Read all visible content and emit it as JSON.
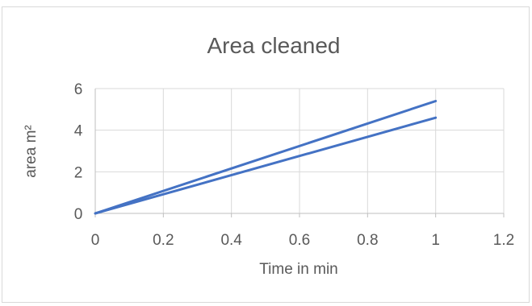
{
  "chart_data": {
    "type": "line",
    "title": "Area cleaned",
    "xlabel": "Time in min",
    "ylabel": "area m²",
    "xlim": [
      0,
      1.2
    ],
    "ylim": [
      0,
      6
    ],
    "x_ticks": [
      "0",
      "0.2",
      "0.4",
      "0.6",
      "0.8",
      "1",
      "1.2"
    ],
    "y_ticks": [
      "0",
      "2",
      "4",
      "6"
    ],
    "grid": true,
    "legend": "none",
    "series": [
      {
        "x": [
          0,
          1
        ],
        "y": [
          0,
          5.4
        ],
        "color": "#4472c4"
      },
      {
        "x": [
          0,
          1
        ],
        "y": [
          0,
          4.6
        ],
        "color": "#4472c4"
      }
    ]
  }
}
